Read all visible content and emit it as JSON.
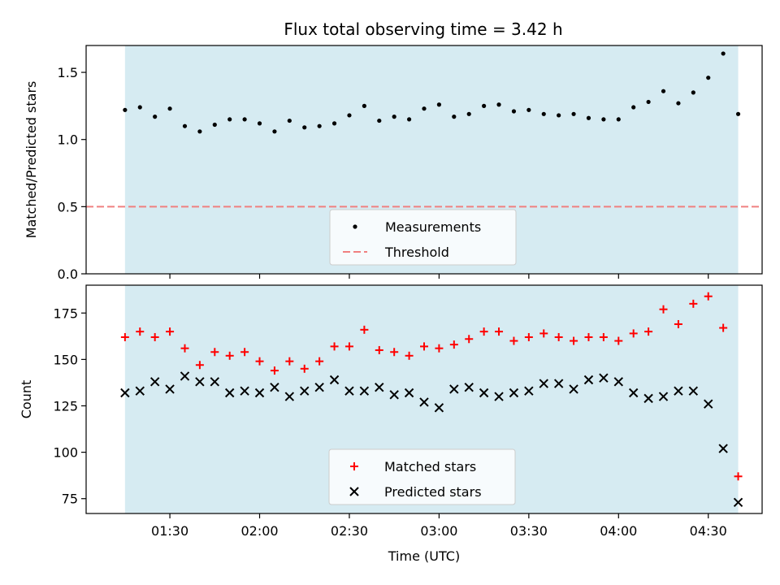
{
  "title": "Flux total observing time = 3.42 h",
  "chart_data": [
    {
      "type": "scatter",
      "ylabel": "Matched/Predicted stars",
      "xlabel": "",
      "ylim": [
        0.0,
        1.7
      ],
      "yticks": [
        "0.0",
        "0.5",
        "1.0",
        "1.5"
      ],
      "shaded_span": [
        "01:15",
        "04:40"
      ],
      "threshold": {
        "name": "Threshold",
        "value": 0.5,
        "color": "#f08080",
        "style": "dashed"
      },
      "series": [
        {
          "name": "Measurements",
          "marker": "dot",
          "color": "#000000",
          "x": [
            "01:15",
            "01:20",
            "01:25",
            "01:30",
            "01:35",
            "01:40",
            "01:45",
            "01:50",
            "01:55",
            "02:00",
            "02:05",
            "02:10",
            "02:15",
            "02:20",
            "02:25",
            "02:30",
            "02:35",
            "02:40",
            "02:45",
            "02:50",
            "02:55",
            "03:00",
            "03:05",
            "03:10",
            "03:15",
            "03:20",
            "03:25",
            "03:30",
            "03:35",
            "03:40",
            "03:45",
            "03:50",
            "03:55",
            "04:00",
            "04:05",
            "04:10",
            "04:15",
            "04:20",
            "04:25",
            "04:30",
            "04:35",
            "04:40"
          ],
          "values": [
            1.22,
            1.24,
            1.17,
            1.23,
            1.1,
            1.06,
            1.11,
            1.15,
            1.15,
            1.12,
            1.06,
            1.14,
            1.09,
            1.1,
            1.12,
            1.18,
            1.25,
            1.14,
            1.17,
            1.15,
            1.23,
            1.26,
            1.17,
            1.19,
            1.25,
            1.26,
            1.21,
            1.22,
            1.19,
            1.18,
            1.19,
            1.16,
            1.15,
            1.15,
            1.24,
            1.28,
            1.36,
            1.27,
            1.35,
            1.46,
            1.64,
            1.19
          ]
        }
      ],
      "legend": {
        "position": "lower-center",
        "entries": [
          "Measurements",
          "Threshold"
        ]
      }
    },
    {
      "type": "scatter",
      "ylabel": "Count",
      "xlabel": "Time (UTC)",
      "ylim": [
        67,
        190
      ],
      "yticks": [
        "75",
        "100",
        "125",
        "150",
        "175"
      ],
      "xticks": [
        "01:30",
        "02:00",
        "02:30",
        "03:00",
        "03:30",
        "04:00",
        "04:30"
      ],
      "shaded_span": [
        "01:15",
        "04:40"
      ],
      "series": [
        {
          "name": "Matched stars",
          "marker": "plus",
          "color": "#ff0000",
          "x": [
            "01:15",
            "01:20",
            "01:25",
            "01:30",
            "01:35",
            "01:40",
            "01:45",
            "01:50",
            "01:55",
            "02:00",
            "02:05",
            "02:10",
            "02:15",
            "02:20",
            "02:25",
            "02:30",
            "02:35",
            "02:40",
            "02:45",
            "02:50",
            "02:55",
            "03:00",
            "03:05",
            "03:10",
            "03:15",
            "03:20",
            "03:25",
            "03:30",
            "03:35",
            "03:40",
            "03:45",
            "03:50",
            "03:55",
            "04:00",
            "04:05",
            "04:10",
            "04:15",
            "04:20",
            "04:25",
            "04:30",
            "04:35",
            "04:40"
          ],
          "values": [
            162,
            165,
            162,
            165,
            156,
            147,
            154,
            152,
            154,
            149,
            144,
            149,
            145,
            149,
            157,
            157,
            166,
            155,
            154,
            152,
            157,
            156,
            158,
            161,
            165,
            165,
            160,
            162,
            164,
            162,
            160,
            162,
            162,
            160,
            164,
            165,
            177,
            169,
            180,
            184,
            167,
            87
          ]
        },
        {
          "name": "Predicted stars",
          "marker": "x",
          "color": "#000000",
          "x": [
            "01:15",
            "01:20",
            "01:25",
            "01:30",
            "01:35",
            "01:40",
            "01:45",
            "01:50",
            "01:55",
            "02:00",
            "02:05",
            "02:10",
            "02:15",
            "02:20",
            "02:25",
            "02:30",
            "02:35",
            "02:40",
            "02:45",
            "02:50",
            "02:55",
            "03:00",
            "03:05",
            "03:10",
            "03:15",
            "03:20",
            "03:25",
            "03:30",
            "03:35",
            "03:40",
            "03:45",
            "03:50",
            "03:55",
            "04:00",
            "04:05",
            "04:10",
            "04:15",
            "04:20",
            "04:25",
            "04:30",
            "04:35",
            "04:40"
          ],
          "values": [
            132,
            133,
            138,
            134,
            141,
            138,
            138,
            132,
            133,
            132,
            135,
            130,
            133,
            135,
            139,
            133,
            133,
            135,
            131,
            132,
            127,
            124,
            134,
            135,
            132,
            130,
            132,
            133,
            137,
            137,
            134,
            139,
            140,
            138,
            132,
            129,
            130,
            133,
            133,
            126,
            102,
            73
          ]
        }
      ],
      "legend": {
        "position": "lower-center",
        "entries": [
          "Matched stars",
          "Predicted stars"
        ]
      }
    }
  ],
  "colors": {
    "shade": "#add8e6",
    "threshold": "#f08080",
    "matched": "#ff0000",
    "predicted": "#000000"
  }
}
